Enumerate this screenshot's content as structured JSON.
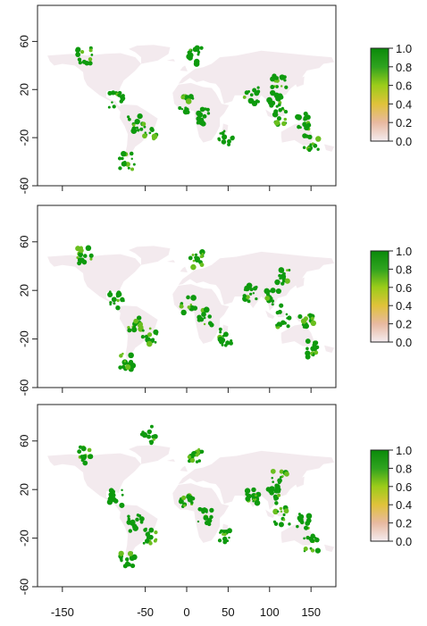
{
  "chart_data": [
    {
      "type": "heatmap",
      "panel": 1,
      "x_range": [
        -180,
        180
      ],
      "y_range": [
        -60,
        90
      ],
      "y_ticks": [
        60,
        20,
        -20,
        -60
      ],
      "x_ticks": [
        -150,
        -50,
        0,
        50,
        100,
        150
      ],
      "x_tick_labels_visible": false,
      "colorscale": {
        "min": 0.0,
        "max": 1.0,
        "ticks": [
          "1.0",
          "0.8",
          "0.6",
          "0.4",
          "0.2",
          "0.0"
        ],
        "colors": [
          "#f4ecf0",
          "#e8b9a0",
          "#e0c23a",
          "#9ccc1a",
          "#2fa31f",
          "#0a8a0a"
        ]
      },
      "hotspots": [
        {
          "name": "south-america-amazon",
          "lon": -62,
          "lat": -8,
          "value": 0.95
        },
        {
          "name": "brazil-atlantic",
          "lon": -45,
          "lat": -15,
          "value": 0.9
        },
        {
          "name": "central-america",
          "lon": -85,
          "lat": 12,
          "value": 0.85
        },
        {
          "name": "chile",
          "lon": -72,
          "lat": -40,
          "value": 0.8
        },
        {
          "name": "central-africa",
          "lon": 22,
          "lat": -2,
          "value": 0.95
        },
        {
          "name": "west-africa",
          "lon": 0,
          "lat": 8,
          "value": 0.85
        },
        {
          "name": "madagascar",
          "lon": 47,
          "lat": -19,
          "value": 0.85
        },
        {
          "name": "india",
          "lon": 78,
          "lat": 15,
          "value": 0.8
        },
        {
          "name": "southeast-asia",
          "lon": 108,
          "lat": 12,
          "value": 0.9
        },
        {
          "name": "china",
          "lon": 112,
          "lat": 28,
          "value": 0.85
        },
        {
          "name": "indonesia",
          "lon": 115,
          "lat": -2,
          "value": 0.9
        },
        {
          "name": "new-guinea",
          "lon": 142,
          "lat": -6,
          "value": 0.85
        },
        {
          "name": "australia-east",
          "lon": 150,
          "lat": -25,
          "value": 0.8
        },
        {
          "name": "pacific-nw",
          "lon": -123,
          "lat": 48,
          "value": 0.8
        },
        {
          "name": "europe",
          "lon": 10,
          "lat": 48,
          "value": 0.8
        }
      ]
    },
    {
      "type": "heatmap",
      "panel": 2,
      "x_range": [
        -180,
        180
      ],
      "y_range": [
        -60,
        90
      ],
      "y_ticks": [
        60,
        20,
        -20,
        -60
      ],
      "x_ticks": [
        -150,
        -50,
        0,
        50,
        100,
        150
      ],
      "x_tick_labels_visible": false,
      "colorscale": {
        "min": 0.0,
        "max": 1.0,
        "ticks": [
          "1.0",
          "0.8",
          "0.6",
          "0.4",
          "0.2",
          "0.0"
        ],
        "colors": [
          "#f4ecf0",
          "#e8b9a0",
          "#e0c23a",
          "#9ccc1a",
          "#2fa31f",
          "#0a8a0a"
        ]
      },
      "hotspots": [
        {
          "name": "south-america-amazon",
          "lon": -62,
          "lat": -8,
          "value": 0.95
        },
        {
          "name": "brazil-atlantic",
          "lon": -45,
          "lat": -18,
          "value": 0.85
        },
        {
          "name": "central-america",
          "lon": -85,
          "lat": 12,
          "value": 0.85
        },
        {
          "name": "chile",
          "lon": -72,
          "lat": -38,
          "value": 0.8
        },
        {
          "name": "central-africa",
          "lon": 22,
          "lat": -2,
          "value": 0.95
        },
        {
          "name": "west-africa",
          "lon": 2,
          "lat": 8,
          "value": 0.85
        },
        {
          "name": "madagascar",
          "lon": 47,
          "lat": -19,
          "value": 0.85
        },
        {
          "name": "india",
          "lon": 78,
          "lat": 18,
          "value": 0.8
        },
        {
          "name": "southeast-asia",
          "lon": 105,
          "lat": 14,
          "value": 0.9
        },
        {
          "name": "china",
          "lon": 115,
          "lat": 30,
          "value": 0.85
        },
        {
          "name": "indonesia",
          "lon": 115,
          "lat": -3,
          "value": 0.85
        },
        {
          "name": "new-guinea",
          "lon": 145,
          "lat": -6,
          "value": 0.8
        },
        {
          "name": "australia-east",
          "lon": 150,
          "lat": -28,
          "value": 0.8
        },
        {
          "name": "pacific-nw",
          "lon": -123,
          "lat": 48,
          "value": 0.8
        },
        {
          "name": "europe",
          "lon": 12,
          "lat": 46,
          "value": 0.8
        }
      ]
    },
    {
      "type": "heatmap",
      "panel": 3,
      "x_range": [
        -180,
        180
      ],
      "y_range": [
        -60,
        90
      ],
      "y_ticks": [
        60,
        20,
        -20,
        -60
      ],
      "x_ticks": [
        -150,
        -50,
        0,
        50,
        100,
        150
      ],
      "x_tick_labels": [
        "-150",
        "-50",
        "0",
        "50",
        "100",
        "150"
      ],
      "x_tick_labels_visible": true,
      "colorscale": {
        "min": 0.0,
        "max": 1.0,
        "ticks": [
          "1.0",
          "0.8",
          "0.6",
          "0.4",
          "0.2",
          "0.0"
        ],
        "colors": [
          "#f4ecf0",
          "#e8b9a0",
          "#e0c23a",
          "#9ccc1a",
          "#2fa31f",
          "#0a8a0a"
        ]
      },
      "hotspots": [
        {
          "name": "south-america-amazon",
          "lon": -62,
          "lat": -8,
          "value": 0.95
        },
        {
          "name": "brazil-atlantic",
          "lon": -45,
          "lat": -18,
          "value": 0.9
        },
        {
          "name": "central-america",
          "lon": -85,
          "lat": 14,
          "value": 0.85
        },
        {
          "name": "chile",
          "lon": -72,
          "lat": -38,
          "value": 0.8
        },
        {
          "name": "greenland-south",
          "lon": -45,
          "lat": 65,
          "value": 0.85
        },
        {
          "name": "central-africa",
          "lon": 22,
          "lat": -2,
          "value": 0.95
        },
        {
          "name": "west-africa",
          "lon": 0,
          "lat": 8,
          "value": 0.85
        },
        {
          "name": "madagascar",
          "lon": 47,
          "lat": -19,
          "value": 0.85
        },
        {
          "name": "india",
          "lon": 78,
          "lat": 15,
          "value": 0.8
        },
        {
          "name": "southeast-asia",
          "lon": 105,
          "lat": 14,
          "value": 0.9
        },
        {
          "name": "china",
          "lon": 112,
          "lat": 28,
          "value": 0.85
        },
        {
          "name": "indonesia",
          "lon": 115,
          "lat": -2,
          "value": 0.9
        },
        {
          "name": "new-guinea",
          "lon": 142,
          "lat": -6,
          "value": 0.85
        },
        {
          "name": "australia-east",
          "lon": 150,
          "lat": -25,
          "value": 0.8
        },
        {
          "name": "pacific-nw",
          "lon": -123,
          "lat": 48,
          "value": 0.8
        },
        {
          "name": "europe",
          "lon": 12,
          "lat": 48,
          "value": 0.8
        }
      ]
    }
  ]
}
